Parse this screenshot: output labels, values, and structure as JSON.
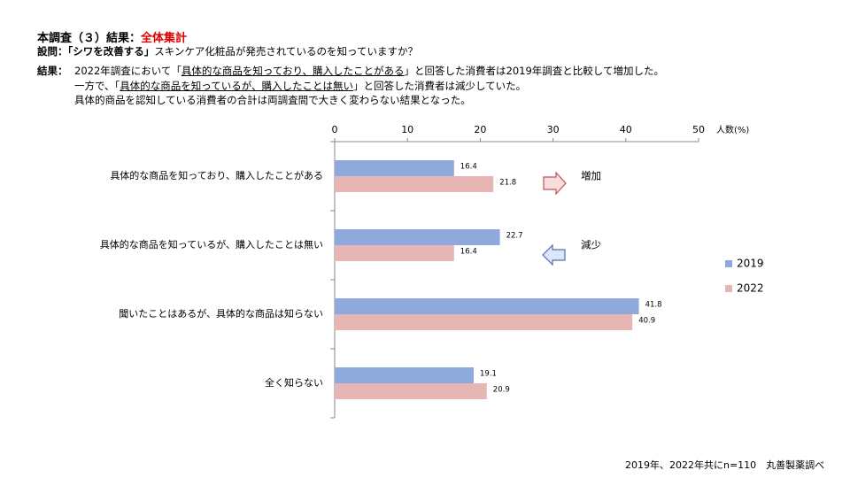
{
  "header": {
    "title": "本調査（３）結果：",
    "title_highlight": "全体集計"
  },
  "question": {
    "label": "設問：",
    "emphasis": "「シワを改善する」",
    "text": "スキンケア化粧品が発売されているのを知っていますか？"
  },
  "result": {
    "label": "結果：",
    "lines": [
      [
        "2022年調査において「",
        "具体的な商品を知っており、購入したことがある",
        "」と回答した消費者は2019年調査と比較して増加した。"
      ],
      [
        "一方で、「",
        "具体的な商品を知っているが、購入したことは無い",
        "」と回答した消費者は減少していた。"
      ],
      [
        "具体的商品を認知している消費者の合計は両調査間で大きく変わらない結果となった。"
      ]
    ]
  },
  "chart_data": {
    "type": "hbar",
    "x_label": "人数(%)",
    "categories": [
      "具体的な商品を知っており、購入したことがある",
      "具体的な商品を知っているが、購入したことは無い",
      "聞いたことはあるが、具体的な商品は知らない",
      "全く知らない"
    ],
    "series": [
      {
        "name": "2019",
        "color": "#8eaadc",
        "values": [
          16.4,
          22.7,
          41.8,
          19.1
        ]
      },
      {
        "name": "2022",
        "color": "#e8b5b5",
        "values": [
          21.8,
          16.4,
          40.9,
          20.9
        ]
      }
    ],
    "xlim": [
      0,
      50
    ],
    "xticks": [
      0,
      10,
      20,
      30,
      40,
      50
    ],
    "annotations": [
      "増加",
      "減少"
    ]
  },
  "footer": "2019年、2022年共にn=110　丸善製薬調べ"
}
